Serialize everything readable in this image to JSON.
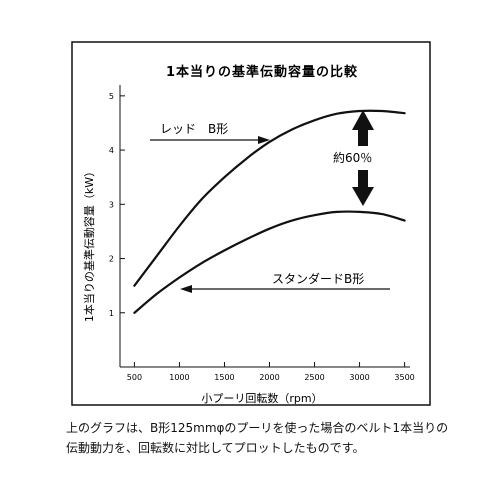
{
  "chart_data": {
    "type": "line",
    "title": "1本当りの基準伝動容量の比較",
    "xlabel": "小プーリ回転数（rpm）",
    "ylabel": "1本当りの基準伝動容量（kW）",
    "xlim": [
      340,
      3560
    ],
    "ylim": [
      0,
      5.2
    ],
    "xticks": [
      500,
      1000,
      1500,
      2000,
      2500,
      3000,
      3500
    ],
    "yticks": [
      1,
      2,
      3,
      4,
      5
    ],
    "grid": false,
    "series": [
      {
        "name": "レッド　B形",
        "x": [
          500,
          750,
          1000,
          1250,
          1500,
          1750,
          2000,
          2250,
          2500,
          2750,
          3000,
          3250,
          3500
        ],
        "y": [
          1.5,
          2.05,
          2.6,
          3.1,
          3.5,
          3.85,
          4.15,
          4.38,
          4.55,
          4.67,
          4.72,
          4.72,
          4.68
        ]
      },
      {
        "name": "スタンダードB形",
        "x": [
          500,
          750,
          1000,
          1250,
          1500,
          1750,
          2000,
          2250,
          2500,
          2750,
          3000,
          3250,
          3500
        ],
        "y": [
          1.0,
          1.35,
          1.65,
          1.92,
          2.15,
          2.36,
          2.55,
          2.7,
          2.8,
          2.86,
          2.86,
          2.82,
          2.7
        ]
      }
    ],
    "annotations": [
      {
        "text": "約60％",
        "type": "double-arrow",
        "x": 3000,
        "y_from": 2.86,
        "y_to": 4.72
      }
    ]
  },
  "caption": {
    "line1": "上のグラフは、B形125mmφのプーリを使った場合のベルト1本当りの",
    "line2": "伝動動力を、回転数に対比してプロットしたものです。"
  }
}
